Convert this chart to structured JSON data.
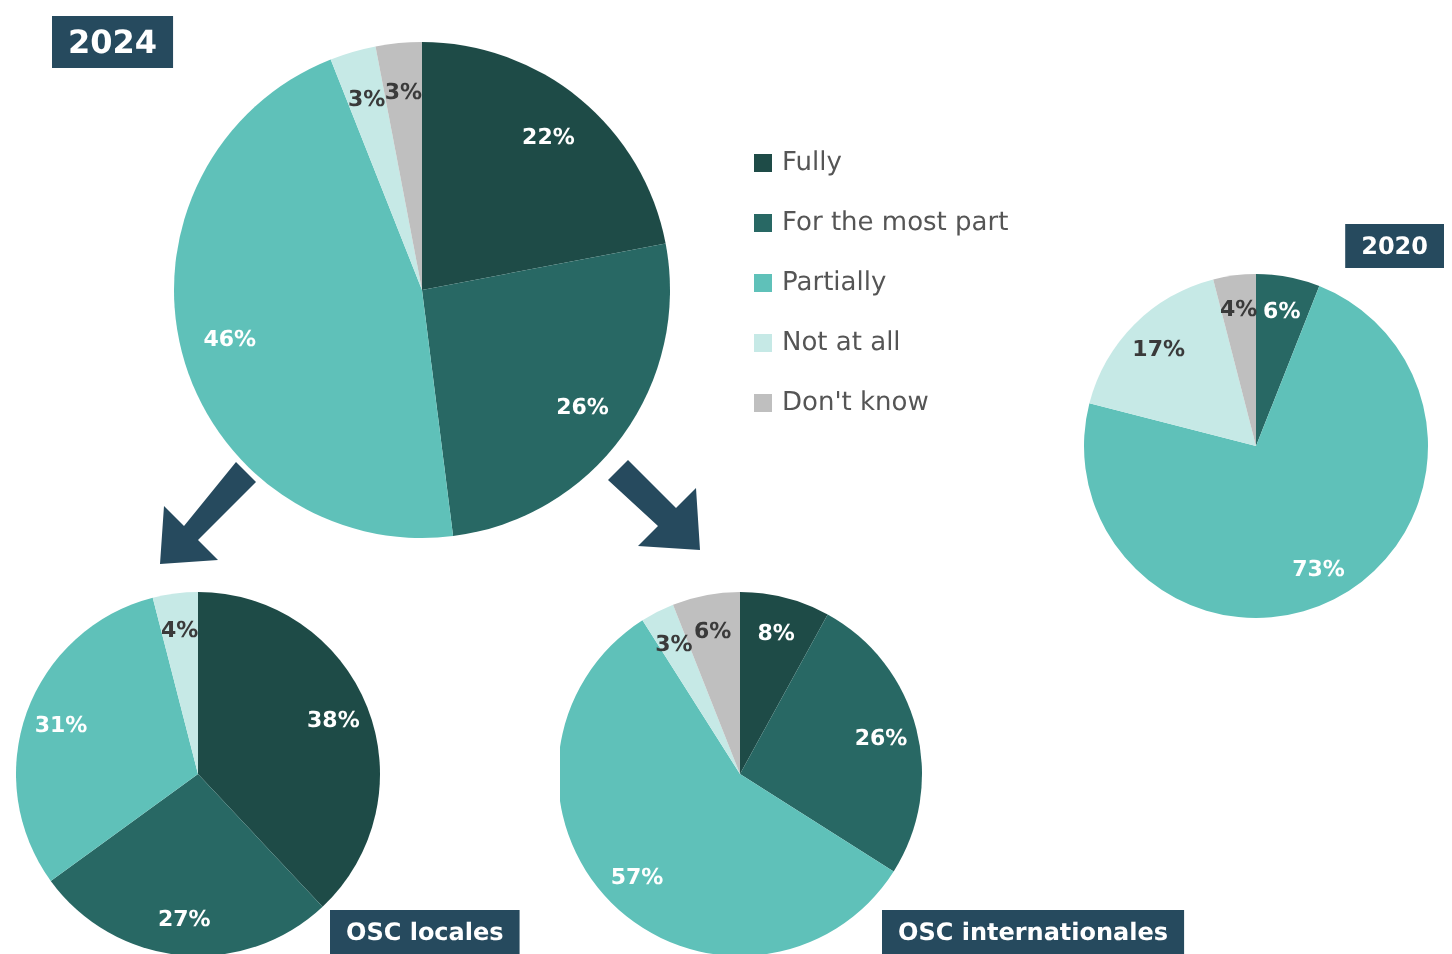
{
  "chart_data": [
    {
      "type": "pie",
      "title": "2024",
      "categories": [
        "Fully",
        "For the most part",
        "Partially",
        "Not at all",
        "Don't know"
      ],
      "values": [
        22,
        26,
        46,
        3,
        3
      ],
      "value_labels": [
        "22%",
        "26%",
        "46%",
        "3%",
        "3%"
      ],
      "colors": [
        "#1e4b47",
        "#286864",
        "#5fc1b9",
        "#c6e9e6",
        "#bfbfbf"
      ],
      "legend": "right"
    },
    {
      "type": "pie",
      "title": "2020",
      "categories": [
        null,
        null,
        null,
        null
      ],
      "values": [
        6,
        73,
        17,
        4
      ],
      "value_labels": [
        "6%",
        "73%",
        "17%",
        "4%"
      ],
      "colors": [
        "#286864",
        "#5fc1b9",
        "#c6e9e6",
        "#bfbfbf"
      ]
    },
    {
      "type": "pie",
      "title": "OSC locales",
      "categories": [
        null,
        null,
        null,
        null
      ],
      "values": [
        38,
        27,
        31,
        4
      ],
      "value_labels": [
        "38%",
        "27%",
        "31%",
        "4%"
      ],
      "colors": [
        "#1e4b47",
        "#286864",
        "#5fc1b9",
        "#c6e9e6"
      ]
    },
    {
      "type": "pie",
      "title": "OSC internationales",
      "categories": [
        null,
        null,
        null,
        null,
        null
      ],
      "values": [
        8,
        26,
        57,
        3,
        6
      ],
      "value_labels": [
        "8%",
        "26%",
        "57%",
        "3%",
        "6%"
      ],
      "colors": [
        "#1e4b47",
        "#286864",
        "#5fc1b9",
        "#c6e9e6",
        "#bfbfbf"
      ]
    }
  ]
}
